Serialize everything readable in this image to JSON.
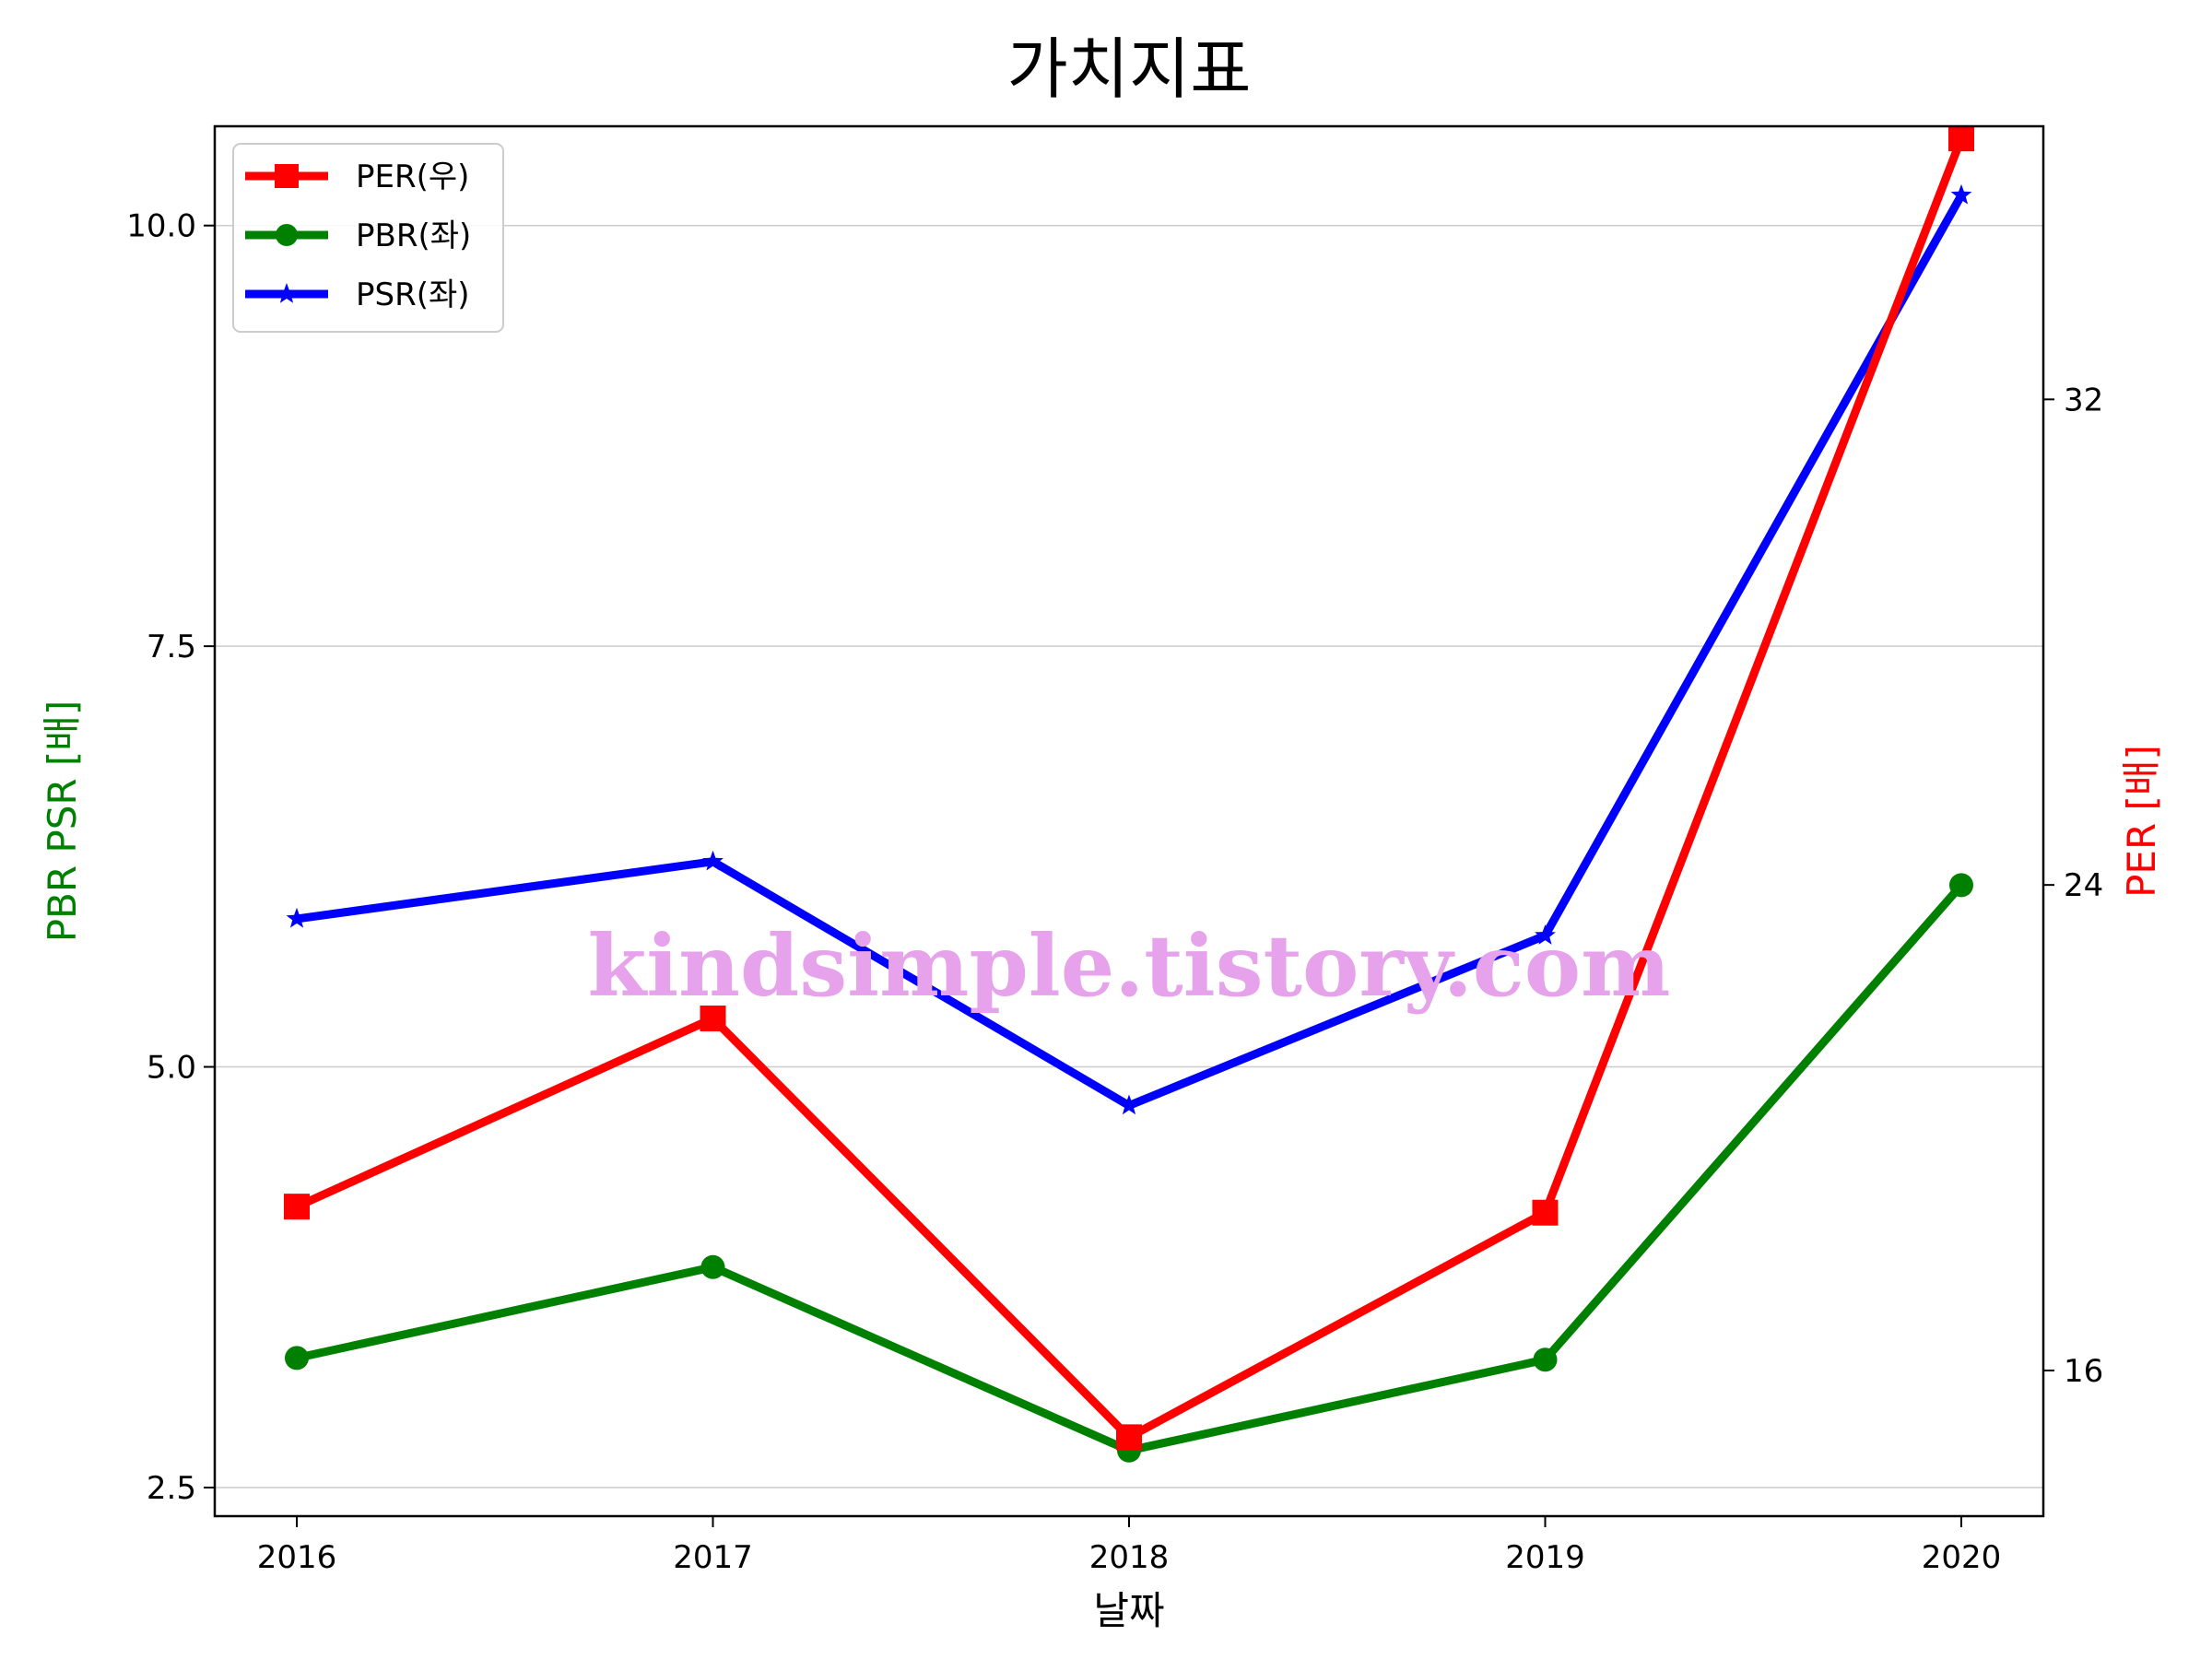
{
  "chart_data": {
    "type": "line",
    "title": "가치지표",
    "xlabel": "날짜",
    "ylabel_left": "PBR PSR [배]",
    "ylabel_right": "PER [배]",
    "categories": [
      "2016",
      "2017",
      "2018",
      "2019",
      "2020"
    ],
    "ylim_left": [
      2.33,
      10.59
    ],
    "yticks_left": [
      "2.5",
      "5.0",
      "7.5",
      "10.0"
    ],
    "ylim_right": [
      13.6,
      36.5
    ],
    "yticks_right": [
      "16",
      "24",
      "32"
    ],
    "grid": "horizontal",
    "legend": "top-left",
    "watermark": "kindsimple.tistory.com",
    "series": [
      {
        "name": "PER(우)",
        "axis": "right",
        "color": "#ff0000",
        "marker": "square",
        "values": [
          18.7,
          21.8,
          14.9,
          18.6,
          36.3
        ]
      },
      {
        "name": "PBR(좌)",
        "axis": "left",
        "color": "#008000",
        "marker": "circle",
        "values": [
          3.27,
          3.81,
          2.72,
          3.26,
          6.08
        ]
      },
      {
        "name": "PSR(좌)",
        "axis": "left",
        "color": "#0000ff",
        "marker": "star",
        "values": [
          5.88,
          6.22,
          4.77,
          5.78,
          10.18
        ]
      }
    ]
  }
}
